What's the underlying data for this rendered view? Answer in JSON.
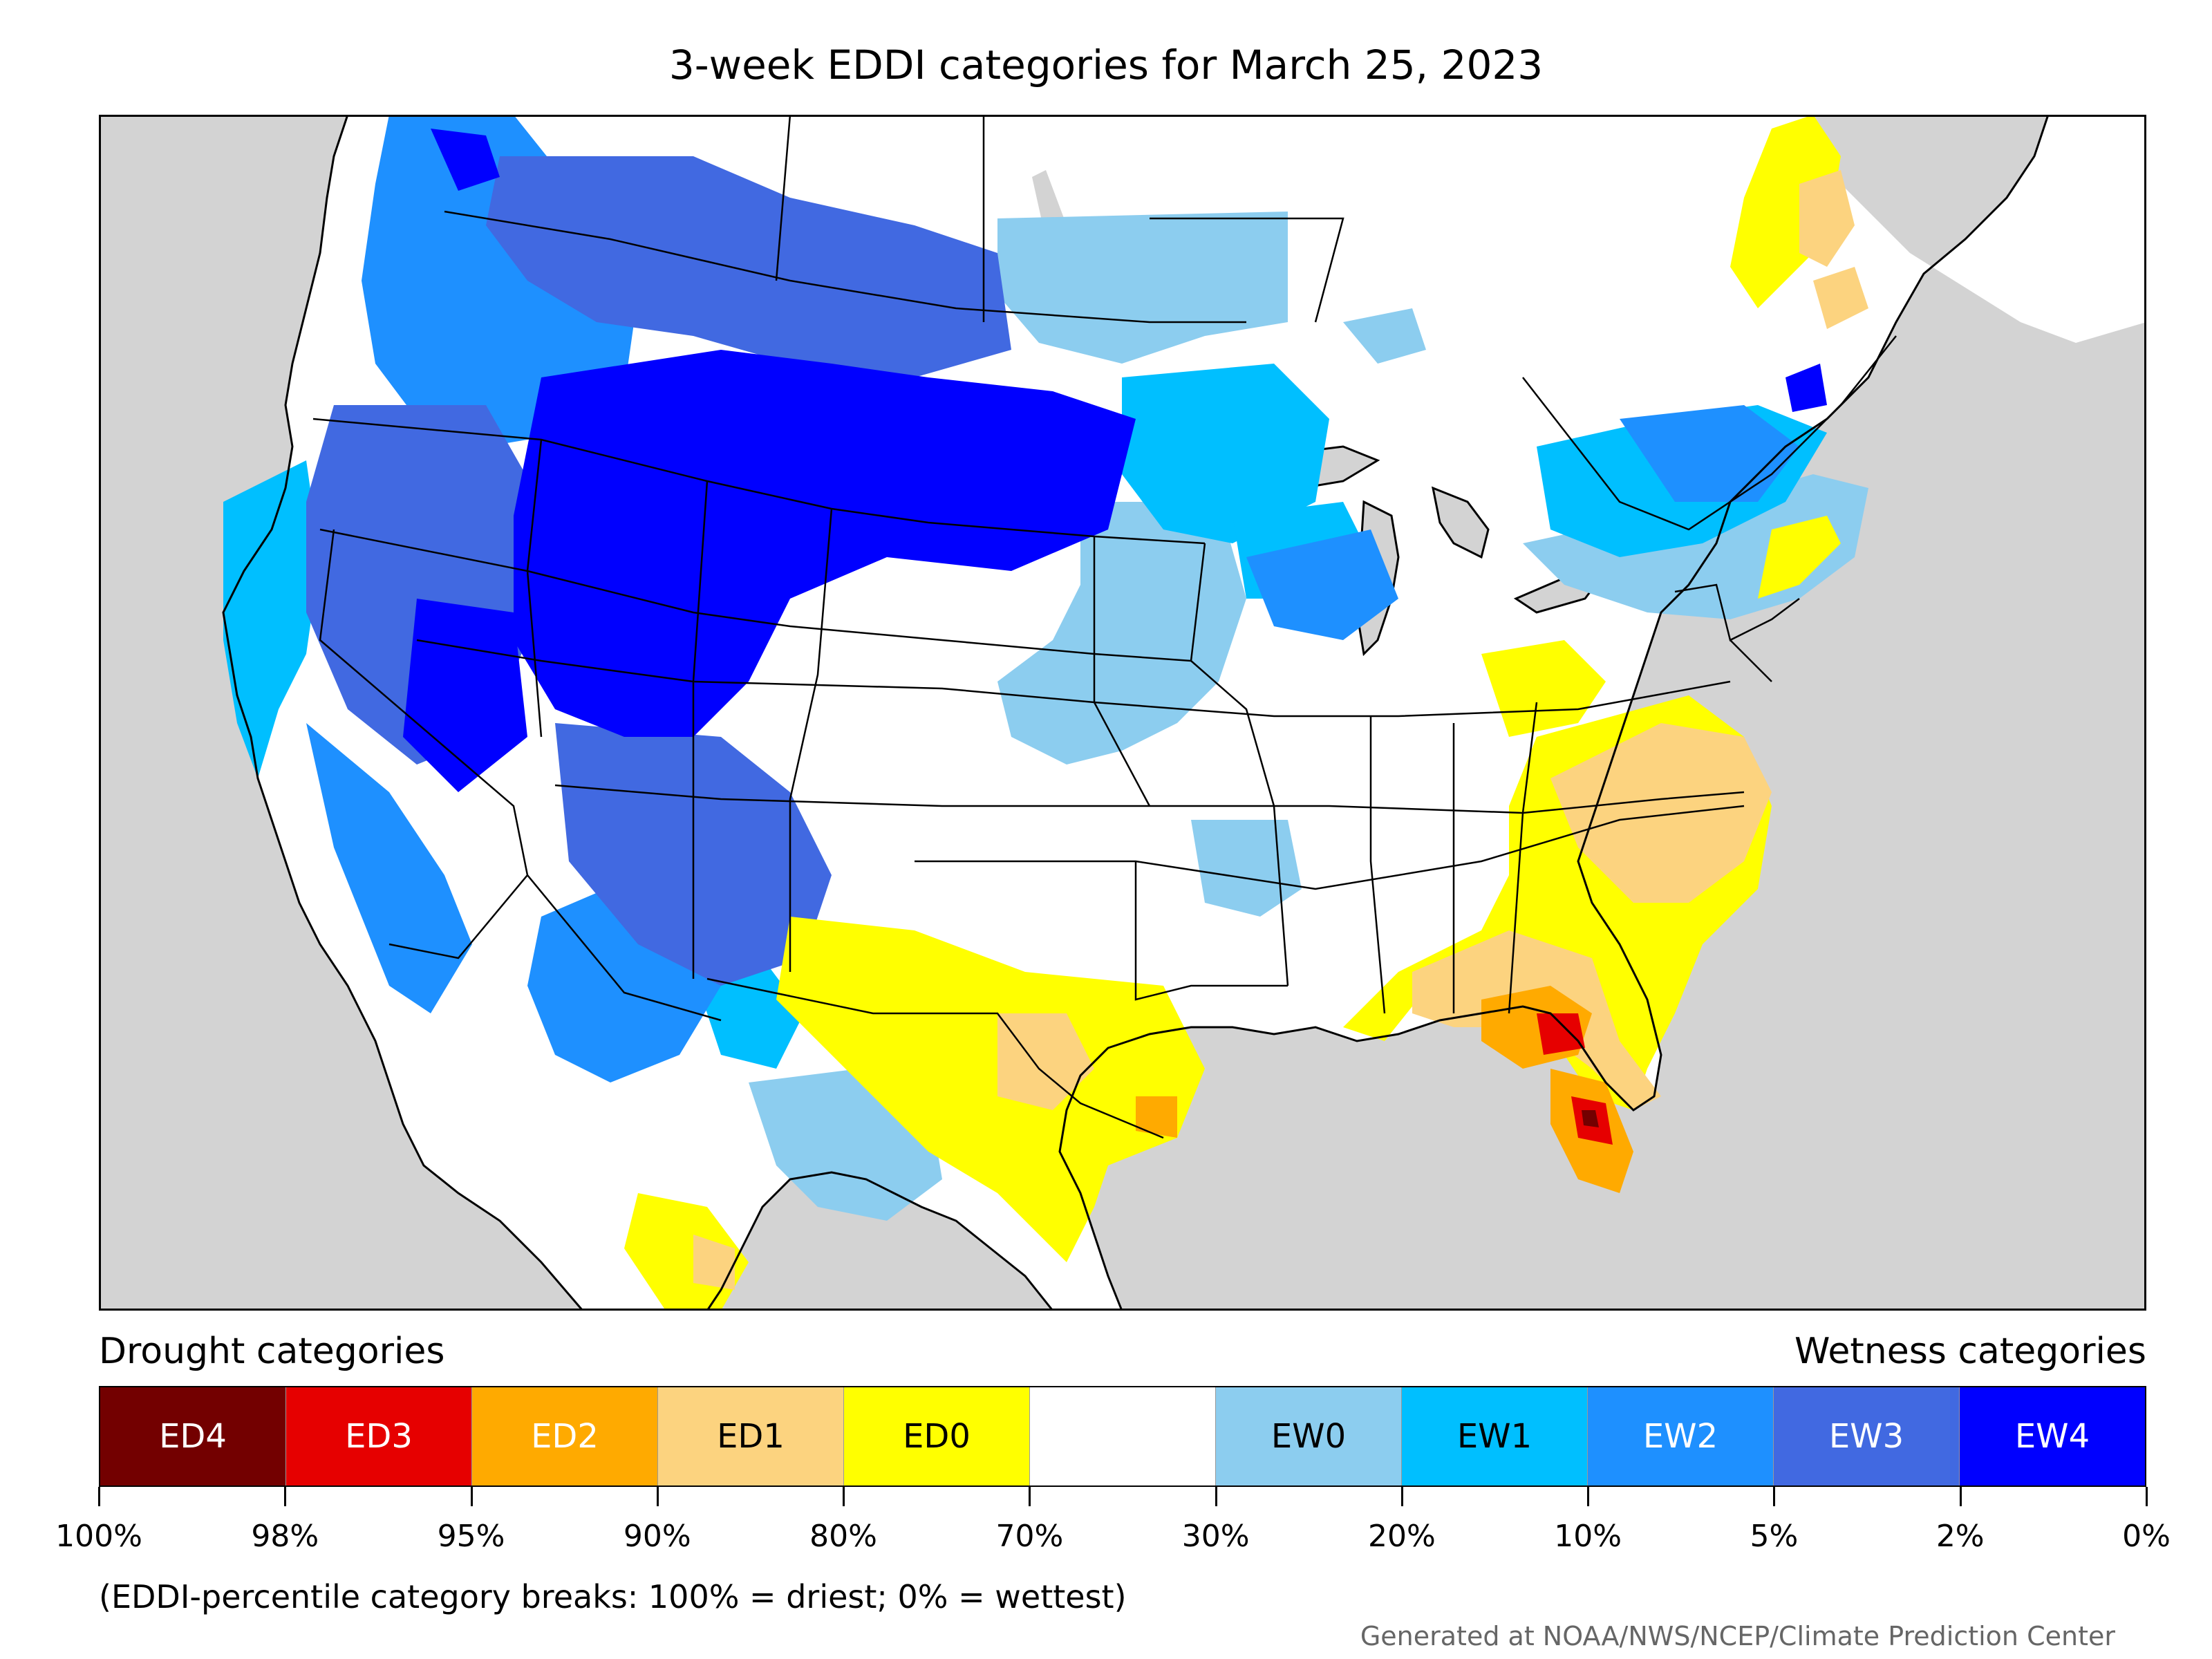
{
  "title": "3-week EDDI categories for March 25, 2023",
  "legend": {
    "drought_heading": "Drought categories",
    "wetness_heading": "Wetness categories",
    "categories": [
      {
        "label": "ED4",
        "color": "#730000",
        "text_color": "#ffffff"
      },
      {
        "label": "ED3",
        "color": "#e60000",
        "text_color": "#ffffff"
      },
      {
        "label": "ED2",
        "color": "#ffaa00",
        "text_color": "#ffffff"
      },
      {
        "label": "ED1",
        "color": "#fcd37f",
        "text_color": "#000000"
      },
      {
        "label": "ED0",
        "color": "#ffff00",
        "text_color": "#000000"
      },
      {
        "label": "",
        "color": "#ffffff",
        "text_color": "#000000"
      },
      {
        "label": "EW0",
        "color": "#8ccdef",
        "text_color": "#000000"
      },
      {
        "label": "EW1",
        "color": "#00bfff",
        "text_color": "#000000"
      },
      {
        "label": "EW2",
        "color": "#1e90ff",
        "text_color": "#ffffff"
      },
      {
        "label": "EW3",
        "color": "#4169e1",
        "text_color": "#ffffff"
      },
      {
        "label": "EW4",
        "color": "#0000ff",
        "text_color": "#ffffff"
      }
    ],
    "breaks": [
      "100%",
      "98%",
      "95%",
      "90%",
      "80%",
      "70%",
      "30%",
      "20%",
      "10%",
      "5%",
      "2%",
      "0%"
    ]
  },
  "note": "(EDDI-percentile category breaks: 100% = driest; 0% = wettest)",
  "credit": "Generated at NOAA/NWS/NCEP/Climate Prediction Center",
  "colors": {
    "ocean": "#d3d3d3",
    "land": "#ffffff",
    "borders": "#000000"
  }
}
